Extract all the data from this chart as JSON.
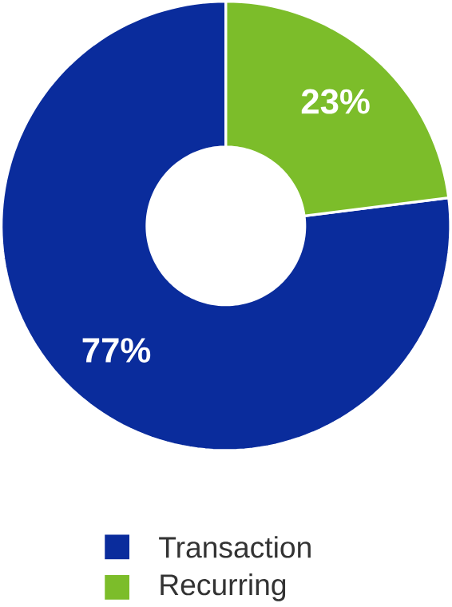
{
  "chart_data": {
    "type": "donut",
    "categories": [
      "Transaction",
      "Recurring"
    ],
    "values": [
      77,
      23
    ],
    "colors": [
      "#0a2c9c",
      "#7cbd2a"
    ],
    "value_labels": [
      "77%",
      "23%"
    ],
    "legend": "bottom"
  }
}
